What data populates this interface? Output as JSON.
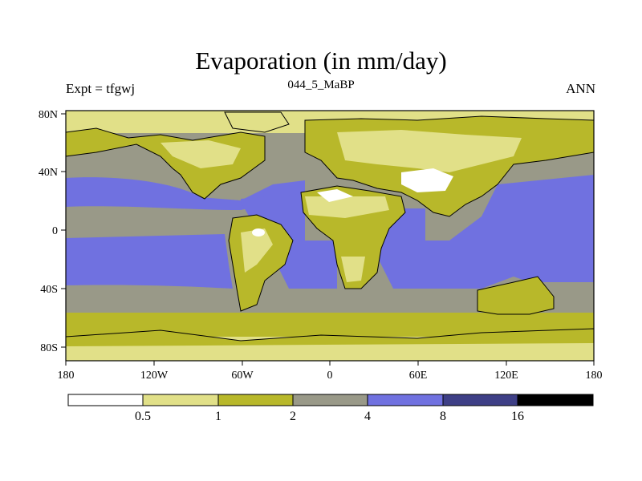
{
  "title": "Evaporation (in mm/day)",
  "left_label": "Expt = tfgwj",
  "center_label": "044_5_MaBP",
  "right_label": "ANN",
  "lon_ticks": [
    "180",
    "120W",
    "60W",
    "0",
    "60E",
    "120E",
    "180"
  ],
  "lat_ticks": [
    "80N",
    "40N",
    "0",
    "40S",
    "80S"
  ],
  "colorbar": {
    "colors": [
      "#ffffff",
      "#e1e088",
      "#b8b82a",
      "#999988",
      "#7071e0",
      "#3e3f86",
      "#000000"
    ],
    "labels": [
      "0.5",
      "1",
      "2",
      "4",
      "8",
      "16"
    ]
  },
  "colors": {
    "ocean_high": "#7071e0",
    "mid": "#999988",
    "mod": "#b8b82a",
    "low": "#e1e088",
    "very_low": "#ffffff",
    "coast": "#000000"
  }
}
